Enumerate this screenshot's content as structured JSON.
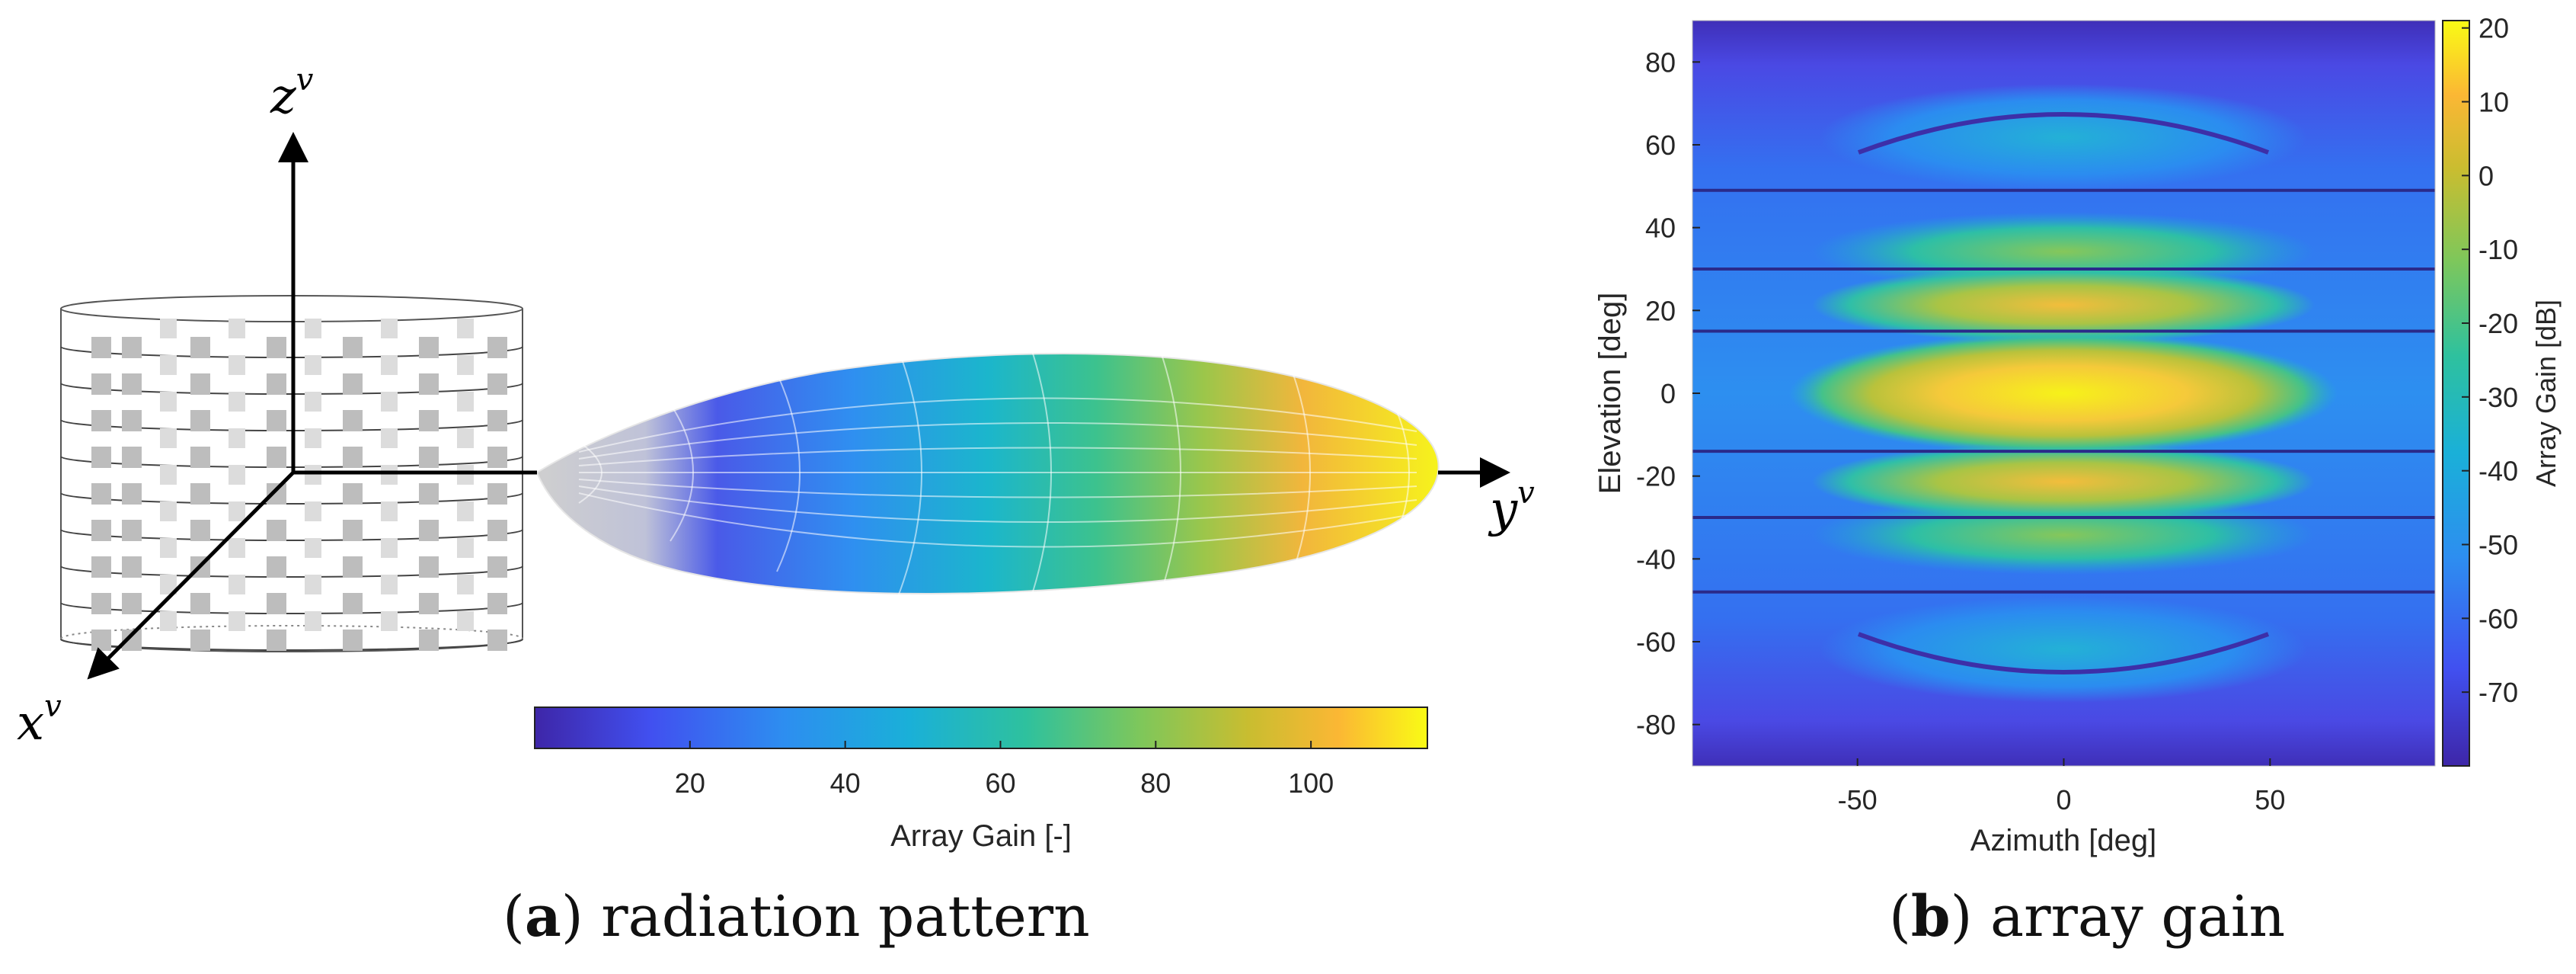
{
  "captions": {
    "a_letter": "a",
    "a_text": "radiation pattern",
    "b_letter": "b",
    "b_text": "array gain"
  },
  "axes3d": {
    "x_label": "x",
    "x_sup": "v",
    "y_label": "y",
    "y_sup": "v",
    "z_label": "z",
    "z_sup": "v"
  },
  "colors": {
    "viridis_like": [
      "#3e26a8",
      "#4150f0",
      "#2d8ef0",
      "#1ab0d8",
      "#2ec19e",
      "#7fc75a",
      "#c9bd30",
      "#fbb734",
      "#f9fb15"
    ],
    "element_gray": "#bdbdbd",
    "null_line": "#2a2a8a"
  },
  "chart_data": [
    {
      "id": "radiation_pattern",
      "type": "3d-surface",
      "title": "",
      "colorbar": {
        "label": "Array Gain [-]",
        "orientation": "horizontal",
        "range": [
          0,
          115
        ],
        "ticks": [
          20,
          40,
          60,
          80,
          100
        ]
      },
      "peak_direction": "y",
      "pattern_gain_bands": [
        10,
        30,
        50,
        70,
        90,
        110
      ]
    },
    {
      "id": "array_gain",
      "type": "heatmap",
      "title": "",
      "xlabel": "Azimuth [deg]",
      "ylabel": "Elevation [deg]",
      "xlim": [
        -90,
        90
      ],
      "ylim": [
        -90,
        90
      ],
      "xticks": [
        -50,
        0,
        50
      ],
      "yticks": [
        80,
        60,
        40,
        20,
        0,
        -20,
        -40,
        -60,
        -80
      ],
      "colorbar": {
        "label": "Array Gain [dB]",
        "orientation": "vertical",
        "range": [
          -80,
          21
        ],
        "ticks": [
          20,
          10,
          0,
          -10,
          -20,
          -30,
          -40,
          -50,
          -60,
          -70
        ]
      },
      "peak_gain_db": 20,
      "peak_location": {
        "azimuth": 0,
        "elevation": 0
      },
      "null_elevations": [
        49,
        30,
        15,
        -14,
        -30,
        -48
      ],
      "floor_gain_db": -78
    }
  ]
}
